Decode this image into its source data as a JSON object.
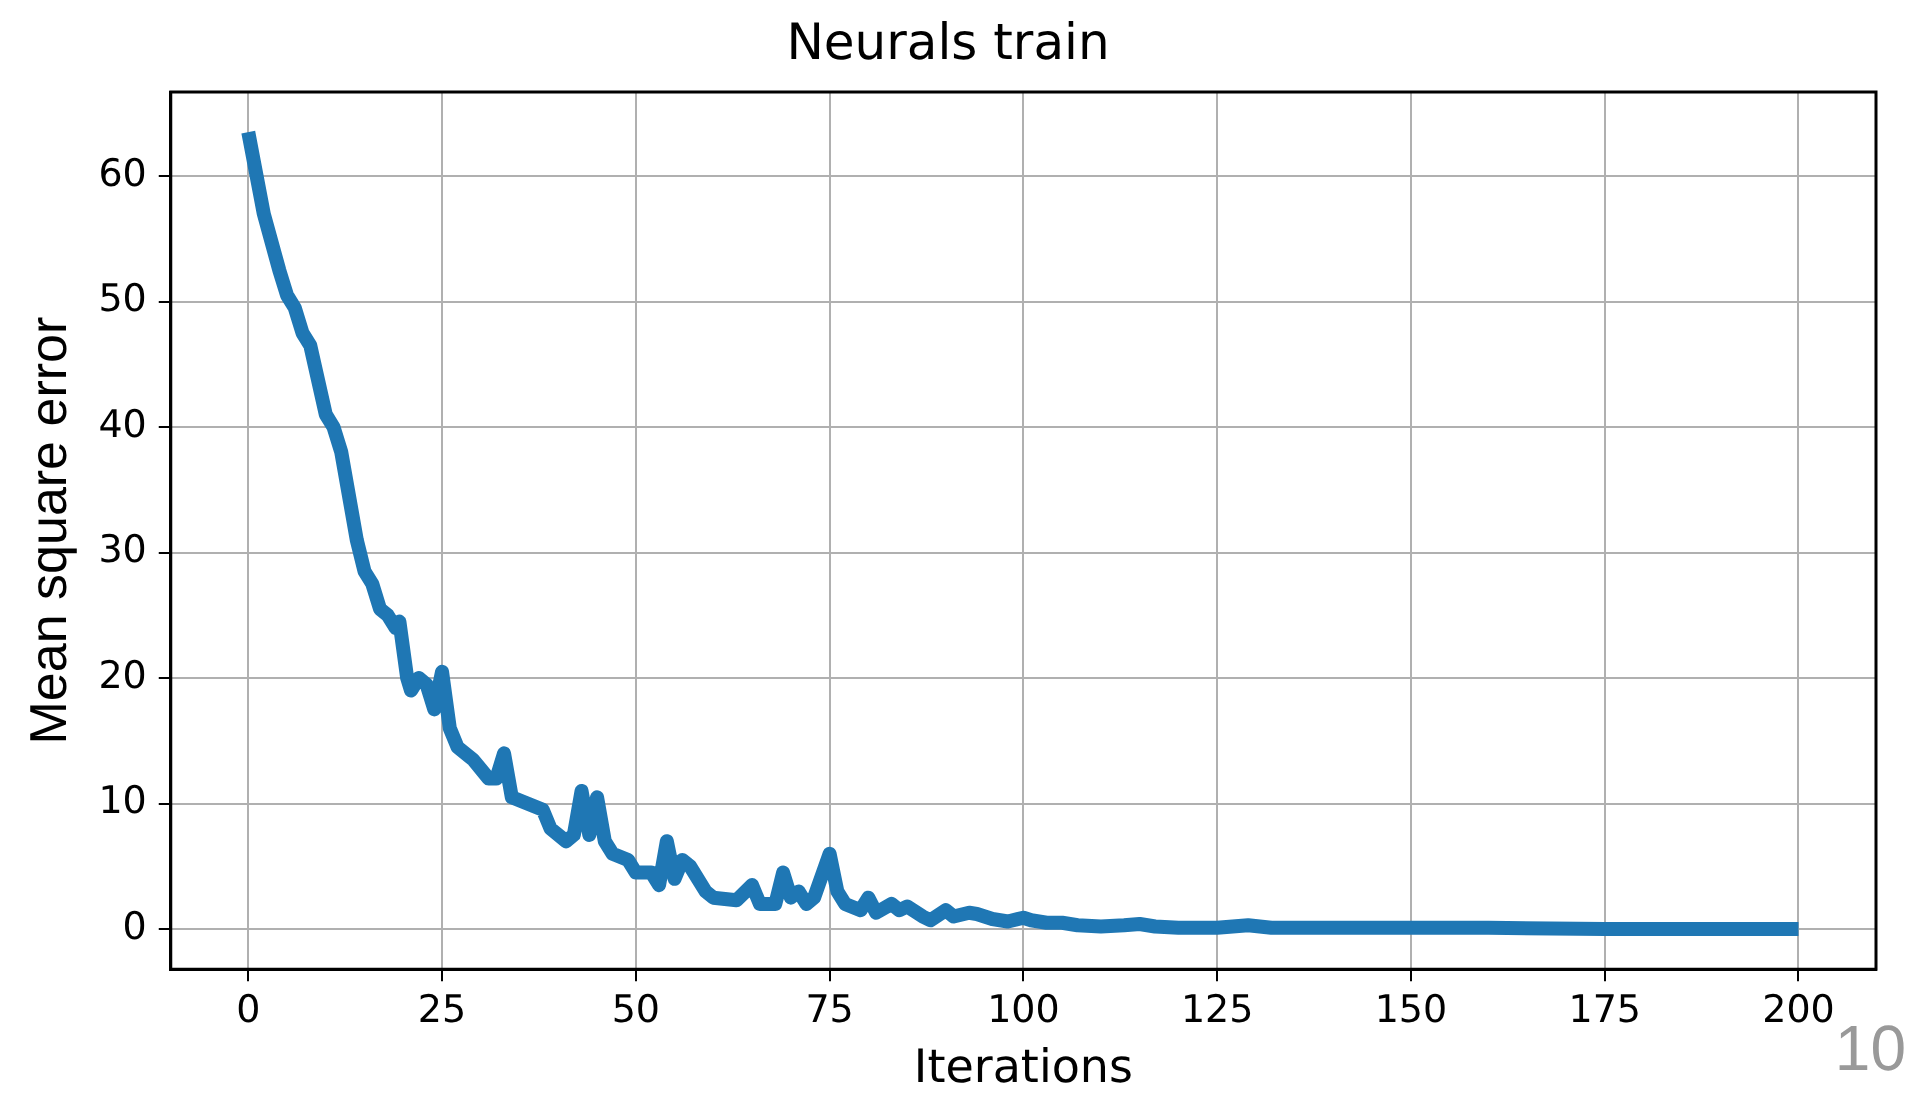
{
  "chart_data": {
    "type": "line",
    "title": "Neurals train",
    "xlabel": "Iterations",
    "ylabel": "Mean square error",
    "x": [
      0,
      2,
      4,
      5,
      6,
      7,
      8,
      10,
      11,
      12,
      14,
      15,
      16,
      17,
      18,
      19,
      19.5,
      20.5,
      21,
      22,
      23,
      24,
      25,
      26,
      27,
      29,
      31,
      32,
      33,
      34,
      36,
      38,
      39,
      41,
      42,
      43,
      44,
      45,
      46,
      47,
      49,
      50,
      52,
      53,
      54,
      55,
      56,
      57,
      59,
      60,
      63,
      65,
      66,
      68,
      69,
      70,
      71,
      72,
      73,
      75,
      76,
      77,
      79,
      80,
      81,
      83,
      84,
      85,
      87,
      88,
      90,
      91,
      93,
      94,
      96,
      98,
      100,
      101,
      103,
      105,
      107,
      110,
      113,
      115,
      117,
      120,
      125,
      129,
      132,
      140,
      150,
      160,
      175,
      200
    ],
    "series": [
      {
        "color": "#1f77b4",
        "values": [
          63.5,
          57,
          52.5,
          50.5,
          49.5,
          47.5,
          46.5,
          41,
          40,
          38,
          31,
          28.5,
          27.5,
          25.5,
          25,
          24,
          24.5,
          20,
          19,
          20,
          19.5,
          17.5,
          20.5,
          16,
          14.5,
          13.5,
          12,
          12,
          14,
          10.5,
          10,
          9.5,
          8,
          7,
          7.5,
          11,
          7.5,
          10.5,
          7,
          6,
          5.5,
          4.5,
          4.5,
          3.5,
          7,
          4,
          5.5,
          5,
          3,
          2.5,
          2.3,
          3.5,
          2,
          2,
          4.5,
          2.5,
          3,
          2,
          2.5,
          6,
          3,
          2,
          1.5,
          2.5,
          1.3,
          2,
          1.5,
          1.8,
          1,
          0.7,
          1.5,
          1,
          1.3,
          1.2,
          0.8,
          0.6,
          0.9,
          0.7,
          0.5,
          0.5,
          0.3,
          0.2,
          0.3,
          0.4,
          0.2,
          0.1,
          0.1,
          0.3,
          0.1,
          0.1,
          0.1,
          0.1,
          0,
          0
        ]
      }
    ],
    "xlim": [
      -10,
      210
    ],
    "xticks": [
      0,
      25,
      50,
      75,
      100,
      125,
      150,
      175,
      200
    ],
    "ylim": [
      -3.2,
      66.7
    ],
    "yticks": [
      0,
      10,
      20,
      30,
      40,
      50,
      60
    ],
    "grid": true,
    "legend": false,
    "marker": "none",
    "line_style": "solid",
    "annotations": [
      "10"
    ]
  }
}
